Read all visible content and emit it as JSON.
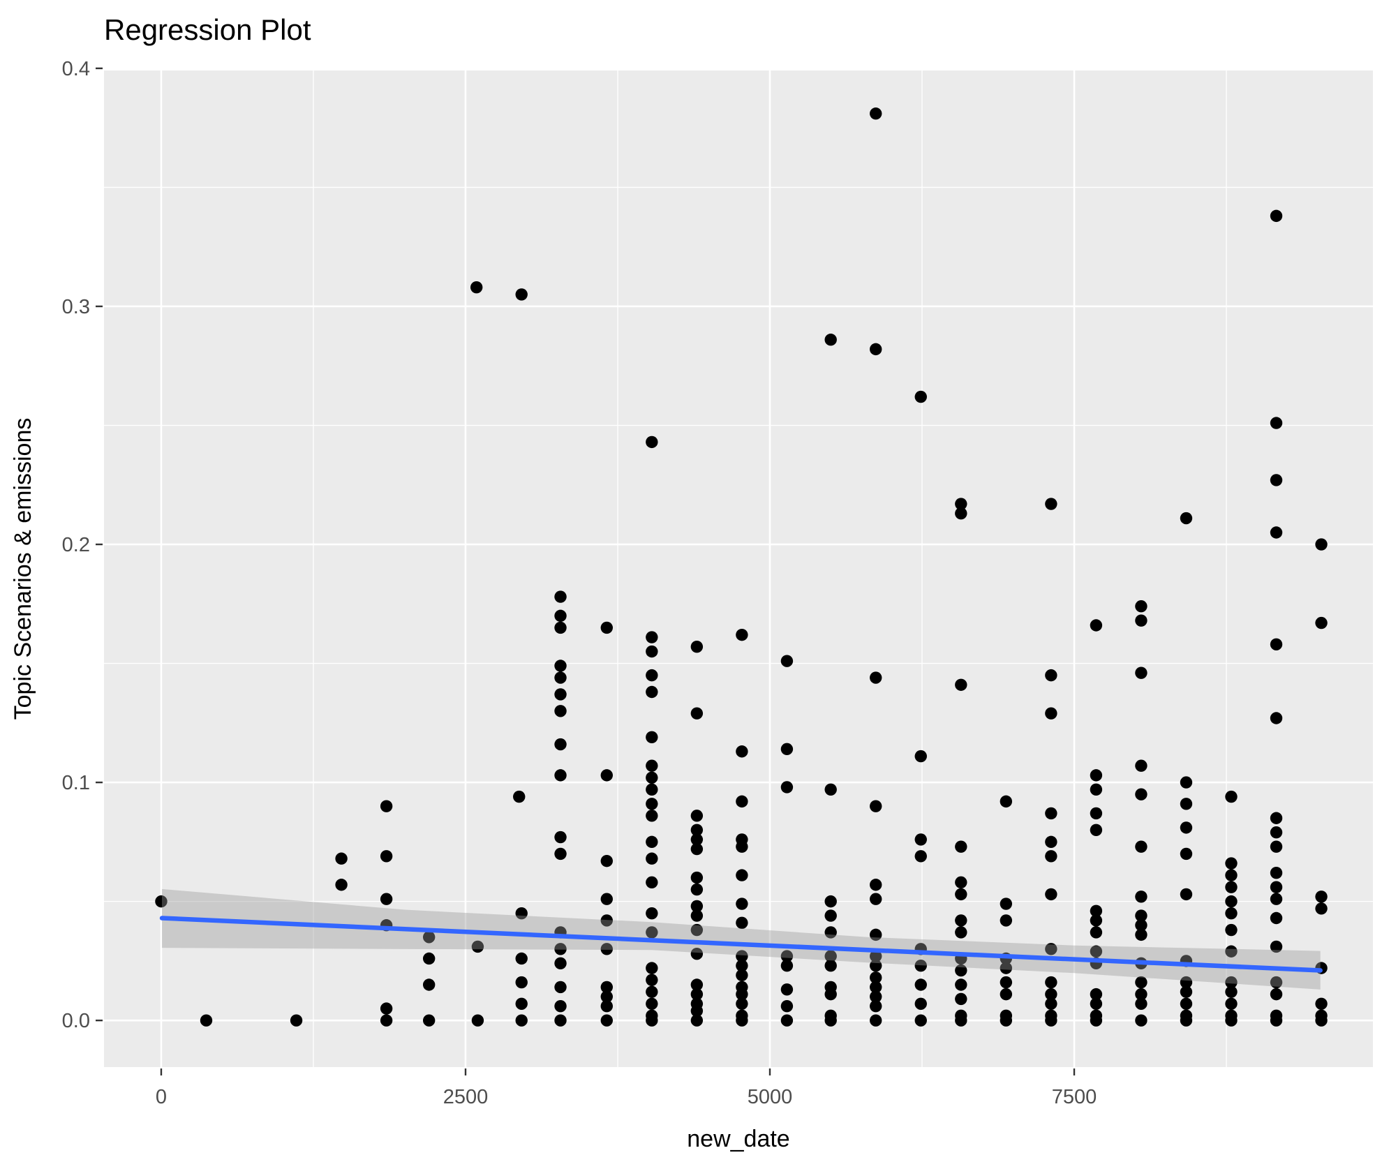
{
  "chart_data": {
    "type": "scatter",
    "title": "Regression Plot",
    "xlabel": "new_date",
    "ylabel": "Topic Scenarios & emissions",
    "legend_position": "none",
    "grid": true,
    "panel_bg": "#EBEBEB",
    "grid_color": "#FFFFFF",
    "point_color": "#000000",
    "tick_label_color": "#4D4D4D",
    "tick_mark_color": "#333333",
    "xlim": [
      -470,
      9954
    ],
    "ylim": [
      -0.0196,
      0.3991
    ],
    "x_ticks": [
      {
        "value": 0,
        "label": "0"
      },
      {
        "value": 2500,
        "label": "2500"
      },
      {
        "value": 5000,
        "label": "5000"
      },
      {
        "value": 7500,
        "label": "7500"
      }
    ],
    "y_ticks": [
      {
        "value": 0.0,
        "label": "0.0"
      },
      {
        "value": 0.1,
        "label": "0.1"
      },
      {
        "value": 0.2,
        "label": "0.2"
      },
      {
        "value": 0.3,
        "label": "0.3"
      },
      {
        "value": 0.4,
        "label": "0.4"
      }
    ],
    "x_minor_gridlines": [
      1250,
      3750,
      6250,
      8750
    ],
    "y_minor_gridlines": [
      0.05,
      0.15,
      0.25,
      0.35
    ],
    "regression_line": {
      "color": "#3366FF",
      "x1": 6,
      "y1": 0.043,
      "x2": 9522,
      "y2": 0.021
    },
    "ci_band": {
      "fill": "#999999",
      "opacity": 0.4,
      "keyframes": [
        {
          "x": 6,
          "lo": 0.0305,
          "hi": 0.0552
        },
        {
          "x": 2000,
          "lo": 0.03,
          "hi": 0.0465
        },
        {
          "x": 4030,
          "lo": 0.0296,
          "hi": 0.0413
        },
        {
          "x": 5800,
          "lo": 0.0243,
          "hi": 0.035
        },
        {
          "x": 7500,
          "lo": 0.0199,
          "hi": 0.0315
        },
        {
          "x": 9522,
          "lo": 0.013,
          "hi": 0.0292
        }
      ]
    },
    "point_columns": [
      {
        "x": 0,
        "ys": [
          0.05
        ]
      },
      {
        "x": 370,
        "ys": [
          0.0
        ]
      },
      {
        "x": 1110,
        "ys": [
          0.0
        ]
      },
      {
        "x": 1480,
        "ys": [
          0.068,
          0.057
        ]
      },
      {
        "x": 1850,
        "ys": [
          0.09,
          0.069,
          0.051,
          0.04,
          0.005,
          0.0
        ]
      },
      {
        "x": 2200,
        "ys": [
          0.035,
          0.026,
          0.015,
          0.0
        ]
      },
      {
        "x": 2590,
        "ys": [
          0.308
        ]
      },
      {
        "x": 2600,
        "ys": [
          0.031,
          0.0
        ]
      },
      {
        "x": 2940,
        "ys": [
          0.094
        ]
      },
      {
        "x": 2960,
        "ys": [
          0.305,
          0.045,
          0.026,
          0.016,
          0.007,
          0.0
        ]
      },
      {
        "x": 3280,
        "ys": [
          0.178,
          0.17,
          0.165,
          0.149,
          0.144,
          0.137,
          0.13,
          0.116,
          0.103,
          0.077,
          0.07,
          0.037,
          0.03,
          0.024,
          0.014,
          0.006,
          0.0
        ]
      },
      {
        "x": 3660,
        "ys": [
          0.165,
          0.103,
          0.067,
          0.051,
          0.042,
          0.03,
          0.014,
          0.01,
          0.006,
          0.0
        ]
      },
      {
        "x": 4030,
        "ys": [
          0.243,
          0.161,
          0.155,
          0.145,
          0.138,
          0.119,
          0.107,
          0.102,
          0.097,
          0.091,
          0.086,
          0.075,
          0.068,
          0.058,
          0.045,
          0.037,
          0.022,
          0.017,
          0.012,
          0.007,
          0.002,
          0.0
        ]
      },
      {
        "x": 4400,
        "ys": [
          0.157,
          0.129,
          0.086,
          0.08,
          0.076,
          0.072,
          0.06,
          0.055,
          0.048,
          0.044,
          0.038,
          0.028,
          0.015,
          0.011,
          0.007,
          0.004,
          0.0
        ]
      },
      {
        "x": 4770,
        "ys": [
          0.162,
          0.113,
          0.092,
          0.076,
          0.073,
          0.061,
          0.049,
          0.041,
          0.027,
          0.023,
          0.019,
          0.014,
          0.011,
          0.007,
          0.002,
          0.0
        ]
      },
      {
        "x": 5140,
        "ys": [
          0.151,
          0.114,
          0.098,
          0.027,
          0.023,
          0.013,
          0.006,
          0.0
        ]
      },
      {
        "x": 5500,
        "ys": [
          0.286,
          0.097,
          0.05,
          0.044,
          0.037,
          0.027,
          0.023,
          0.014,
          0.011,
          0.002,
          0.0
        ]
      },
      {
        "x": 5870,
        "ys": [
          0.381,
          0.282,
          0.144,
          0.09,
          0.057,
          0.051,
          0.036,
          0.027,
          0.023,
          0.018,
          0.014,
          0.01,
          0.006,
          0.0
        ]
      },
      {
        "x": 6240,
        "ys": [
          0.262,
          0.111,
          0.076,
          0.069,
          0.03,
          0.023,
          0.015,
          0.007,
          0.0
        ]
      },
      {
        "x": 6570,
        "ys": [
          0.217,
          0.213,
          0.141,
          0.073,
          0.058,
          0.053,
          0.042,
          0.037,
          0.026,
          0.021,
          0.015,
          0.009,
          0.002,
          0.0
        ]
      },
      {
        "x": 6940,
        "ys": [
          0.092,
          0.049,
          0.042,
          0.026,
          0.022,
          0.016,
          0.011,
          0.002,
          0.0
        ]
      },
      {
        "x": 7310,
        "ys": [
          0.217,
          0.145,
          0.129,
          0.087,
          0.075,
          0.069,
          0.053,
          0.03,
          0.016,
          0.011,
          0.007,
          0.002,
          0.0
        ]
      },
      {
        "x": 7680,
        "ys": [
          0.166,
          0.103,
          0.097,
          0.087,
          0.08,
          0.046,
          0.042,
          0.037,
          0.029,
          0.024,
          0.011,
          0.007,
          0.002,
          0.0
        ]
      },
      {
        "x": 8050,
        "ys": [
          0.174,
          0.168,
          0.146,
          0.107,
          0.095,
          0.073,
          0.052,
          0.044,
          0.04,
          0.036,
          0.024,
          0.016,
          0.011,
          0.007,
          0.0
        ]
      },
      {
        "x": 8420,
        "ys": [
          0.211,
          0.1,
          0.091,
          0.081,
          0.07,
          0.053,
          0.025,
          0.016,
          0.012,
          0.007,
          0.002,
          0.0
        ]
      },
      {
        "x": 8790,
        "ys": [
          0.094,
          0.066,
          0.061,
          0.056,
          0.05,
          0.045,
          0.038,
          0.029,
          0.016,
          0.012,
          0.007,
          0.002,
          0.0
        ]
      },
      {
        "x": 9160,
        "ys": [
          0.338,
          0.251,
          0.227,
          0.205,
          0.158,
          0.127,
          0.085,
          0.079,
          0.073,
          0.062,
          0.056,
          0.051,
          0.043,
          0.031,
          0.016,
          0.011,
          0.002,
          0.0
        ]
      },
      {
        "x": 9530,
        "ys": [
          0.2,
          0.167,
          0.052,
          0.047,
          0.022,
          0.007,
          0.002,
          0.0
        ]
      }
    ]
  }
}
